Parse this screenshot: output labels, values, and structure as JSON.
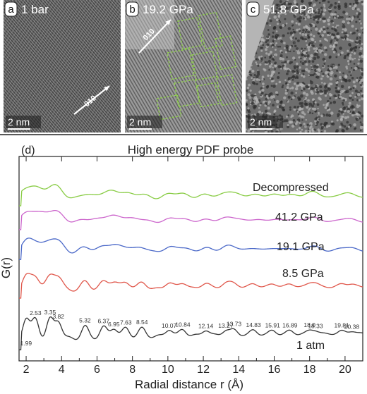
{
  "panels": [
    {
      "letter": "a",
      "label": "1 bar",
      "direction": "010",
      "scale": "2 nm",
      "lattice": "fringes-diagonal"
    },
    {
      "letter": "b",
      "label": "19.2 GPa",
      "direction": "010",
      "scale": "2 nm",
      "lattice": "fringes-domains"
    },
    {
      "letter": "c",
      "label": "51.8 GPa",
      "scale": "2 nm",
      "lattice": "amorphous"
    }
  ],
  "chart_data": {
    "type": "line",
    "panel_letter": "d",
    "title": "High energy PDF probe",
    "xlabel": "Radial distance r (Å)",
    "ylabel": "G(r)",
    "xlim": [
      1.6,
      21
    ],
    "x_ticks": [
      2,
      4,
      6,
      8,
      10,
      12,
      14,
      16,
      18,
      20
    ],
    "grid": false,
    "series": [
      {
        "name": "1 atm",
        "color": "#333333",
        "offset": 0,
        "peaks": [
          {
            "r": 1.99,
            "label": "1.99"
          },
          {
            "r": 2.53,
            "label": "2.53"
          },
          {
            "r": 3.35,
            "label": "3.35"
          },
          {
            "r": 3.82,
            "label": "3.82"
          },
          {
            "r": 5.32,
            "label": "5.32"
          },
          {
            "r": 6.37,
            "label": "6.37"
          },
          {
            "r": 6.95,
            "label": "6.95"
          },
          {
            "r": 7.63,
            "label": "7.63"
          },
          {
            "r": 8.54,
            "label": "8.54"
          },
          {
            "r": 10.07,
            "label": "10.07"
          },
          {
            "r": 10.84,
            "label": "10.84"
          },
          {
            "r": 12.14,
            "label": "12.14"
          },
          {
            "r": 13.27,
            "label": "13.27"
          },
          {
            "r": 13.73,
            "label": "13.73"
          },
          {
            "r": 14.83,
            "label": "14.83"
          },
          {
            "r": 15.91,
            "label": "15.91"
          },
          {
            "r": 16.89,
            "label": "16.89"
          },
          {
            "r": 18.0,
            "label": "18.0"
          },
          {
            "r": 18.33,
            "label": "18.33"
          },
          {
            "r": 19.81,
            "label": "19.81"
          },
          {
            "r": 20.38,
            "label": "20.38"
          }
        ]
      },
      {
        "name": "8.5 GPa",
        "color": "#e0564a",
        "offset": 1
      },
      {
        "name": "19.1 GPa",
        "color": "#4a68c8",
        "offset": 2
      },
      {
        "name": "41.2 GPa",
        "color": "#cc66cc",
        "offset": 3
      },
      {
        "name": "Decompressed",
        "color": "#88cc44",
        "offset": 4
      }
    ]
  }
}
